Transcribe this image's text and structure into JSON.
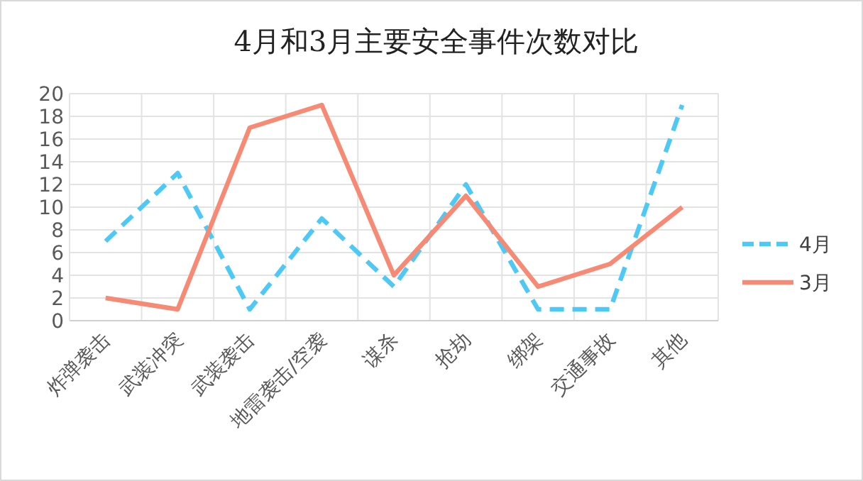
{
  "chart_data": {
    "type": "line",
    "title": "4月和3月主要安全事件次数对比",
    "categories": [
      "炸弹袭击",
      "武装冲突",
      "武装袭击",
      "地雷袭击/空袭",
      "谋杀",
      "抢劫",
      "绑架",
      "交通事故",
      "其他"
    ],
    "series": [
      {
        "name": "4月",
        "color": "#4ec9f5",
        "line_style": "dashed",
        "values": [
          7,
          13,
          1,
          9,
          3,
          12,
          1,
          1,
          19
        ]
      },
      {
        "name": "3月",
        "color": "#f68a74",
        "line_style": "solid",
        "values": [
          2,
          1,
          17,
          19,
          4,
          11,
          3,
          5,
          10
        ]
      }
    ],
    "ylim": [
      0,
      20
    ],
    "yticks": [
      0,
      2,
      4,
      6,
      8,
      10,
      12,
      14,
      16,
      18,
      20
    ],
    "grid": true,
    "legend": "right",
    "marker": "none"
  }
}
